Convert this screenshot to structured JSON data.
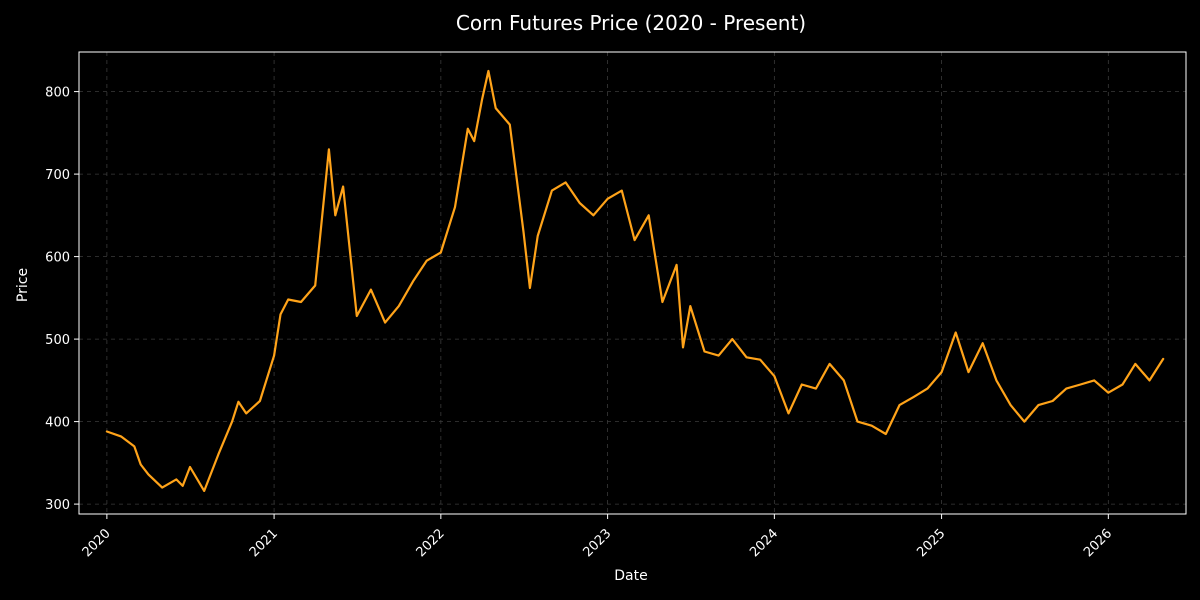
{
  "chart_data": {
    "type": "line",
    "title": "Corn Futures Price (2020 - Present)",
    "xlabel": "Date",
    "ylabel": "Price",
    "x_range": [
      "2019-11-01",
      "2026-06-20"
    ],
    "ylim": [
      288,
      848
    ],
    "x_ticks": [
      {
        "label": "2020",
        "date": "2020-01-01"
      },
      {
        "label": "2021",
        "date": "2021-01-01"
      },
      {
        "label": "2022",
        "date": "2022-01-01"
      },
      {
        "label": "2023",
        "date": "2023-01-01"
      },
      {
        "label": "2024",
        "date": "2024-01-01"
      },
      {
        "label": "2025",
        "date": "2025-01-01"
      },
      {
        "label": "2026",
        "date": "2026-01-01"
      }
    ],
    "y_ticks": [
      300,
      400,
      500,
      600,
      700,
      800
    ],
    "grid": true,
    "colors": {
      "line": "#FFA319",
      "background": "#000000",
      "text": "#ffffff",
      "grid": "#3a3a3a"
    },
    "series": [
      {
        "points": [
          [
            "2020-01-01",
            388
          ],
          [
            "2020-02-01",
            382
          ],
          [
            "2020-03-01",
            370
          ],
          [
            "2020-03-15",
            348
          ],
          [
            "2020-04-01",
            336
          ],
          [
            "2020-05-01",
            320
          ],
          [
            "2020-06-01",
            330
          ],
          [
            "2020-06-15",
            322
          ],
          [
            "2020-07-01",
            345
          ],
          [
            "2020-08-01",
            316
          ],
          [
            "2020-09-01",
            360
          ],
          [
            "2020-10-01",
            400
          ],
          [
            "2020-10-15",
            424
          ],
          [
            "2020-11-01",
            410
          ],
          [
            "2020-12-01",
            425
          ],
          [
            "2021-01-01",
            480
          ],
          [
            "2021-01-15",
            530
          ],
          [
            "2021-02-01",
            548
          ],
          [
            "2021-03-01",
            545
          ],
          [
            "2021-04-01",
            565
          ],
          [
            "2021-05-01",
            730
          ],
          [
            "2021-05-15",
            650
          ],
          [
            "2021-06-01",
            685
          ],
          [
            "2021-07-01",
            528
          ],
          [
            "2021-08-01",
            560
          ],
          [
            "2021-09-01",
            520
          ],
          [
            "2021-10-01",
            540
          ],
          [
            "2021-11-01",
            570
          ],
          [
            "2021-12-01",
            595
          ],
          [
            "2022-01-01",
            605
          ],
          [
            "2022-02-01",
            660
          ],
          [
            "2022-03-01",
            755
          ],
          [
            "2022-03-15",
            740
          ],
          [
            "2022-04-01",
            790
          ],
          [
            "2022-04-15",
            825
          ],
          [
            "2022-05-01",
            780
          ],
          [
            "2022-06-01",
            760
          ],
          [
            "2022-07-01",
            630
          ],
          [
            "2022-07-15",
            562
          ],
          [
            "2022-08-01",
            625
          ],
          [
            "2022-09-01",
            680
          ],
          [
            "2022-10-01",
            690
          ],
          [
            "2022-11-01",
            665
          ],
          [
            "2022-12-01",
            650
          ],
          [
            "2023-01-01",
            670
          ],
          [
            "2023-02-01",
            680
          ],
          [
            "2023-03-01",
            620
          ],
          [
            "2023-04-01",
            650
          ],
          [
            "2023-05-01",
            545
          ],
          [
            "2023-06-01",
            590
          ],
          [
            "2023-06-15",
            490
          ],
          [
            "2023-07-01",
            540
          ],
          [
            "2023-08-01",
            485
          ],
          [
            "2023-09-01",
            480
          ],
          [
            "2023-10-01",
            500
          ],
          [
            "2023-11-01",
            478
          ],
          [
            "2023-12-01",
            475
          ],
          [
            "2024-01-01",
            455
          ],
          [
            "2024-02-01",
            410
          ],
          [
            "2024-03-01",
            445
          ],
          [
            "2024-04-01",
            440
          ],
          [
            "2024-05-01",
            470
          ],
          [
            "2024-06-01",
            450
          ],
          [
            "2024-07-01",
            400
          ],
          [
            "2024-08-01",
            395
          ],
          [
            "2024-09-01",
            385
          ],
          [
            "2024-10-01",
            420
          ],
          [
            "2024-11-01",
            430
          ],
          [
            "2024-12-01",
            440
          ],
          [
            "2025-01-01",
            460
          ],
          [
            "2025-02-01",
            508
          ],
          [
            "2025-03-01",
            460
          ],
          [
            "2025-04-01",
            495
          ],
          [
            "2025-05-01",
            450
          ],
          [
            "2025-06-01",
            420
          ],
          [
            "2025-07-01",
            400
          ],
          [
            "2025-08-01",
            420
          ],
          [
            "2025-09-01",
            425
          ],
          [
            "2025-10-01",
            440
          ],
          [
            "2025-11-01",
            445
          ],
          [
            "2025-12-01",
            450
          ],
          [
            "2026-01-01",
            435
          ],
          [
            "2026-02-01",
            445
          ],
          [
            "2026-03-01",
            470
          ],
          [
            "2026-04-01",
            450
          ],
          [
            "2026-05-01",
            476
          ]
        ]
      }
    ]
  }
}
